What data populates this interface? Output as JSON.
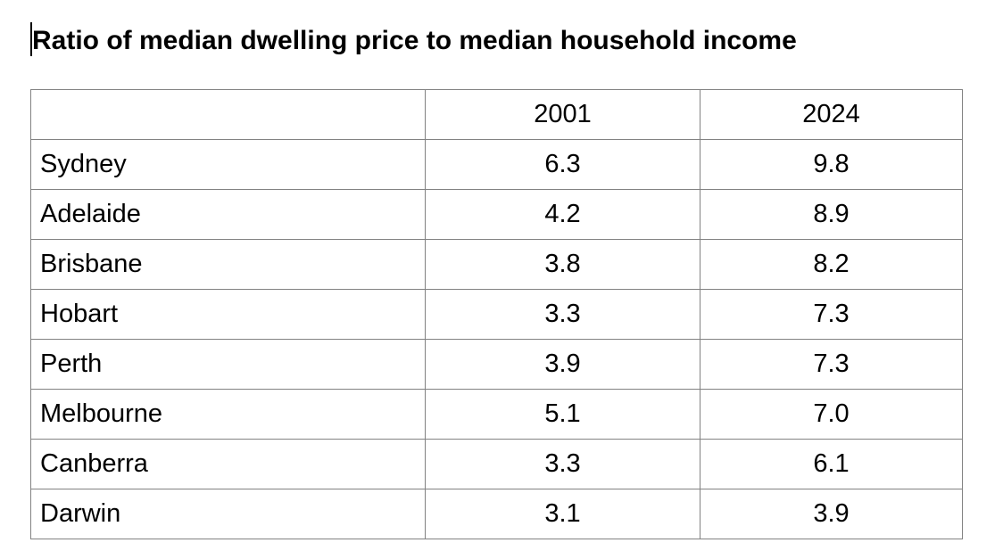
{
  "document": {
    "title": "Ratio of median dwelling price to median household income"
  },
  "table": {
    "headers": [
      "",
      "2001",
      "2024"
    ],
    "rows": [
      {
        "city": "Sydney",
        "values": [
          "6.3",
          "9.8"
        ]
      },
      {
        "city": "Adelaide",
        "values": [
          "4.2",
          "8.9"
        ]
      },
      {
        "city": "Brisbane",
        "values": [
          "3.8",
          "8.2"
        ]
      },
      {
        "city": "Hobart",
        "values": [
          "3.3",
          "7.3"
        ]
      },
      {
        "city": "Perth",
        "values": [
          "3.9",
          "7.3"
        ]
      },
      {
        "city": "Melbourne",
        "values": [
          "5.1",
          "7.0"
        ]
      },
      {
        "city": "Canberra",
        "values": [
          "3.3",
          "6.1"
        ]
      },
      {
        "city": "Darwin",
        "values": [
          "3.1",
          "3.9"
        ]
      }
    ]
  },
  "colors": {
    "table_border": "#828282",
    "text": "#000000",
    "background": "#ffffff"
  },
  "chart_data": {
    "type": "table",
    "title": "Ratio of median dwelling price to median household income",
    "categories": [
      "Sydney",
      "Adelaide",
      "Brisbane",
      "Hobart",
      "Perth",
      "Melbourne",
      "Canberra",
      "Darwin"
    ],
    "series": [
      {
        "name": "2001",
        "values": [
          6.3,
          4.2,
          3.8,
          3.3,
          3.9,
          5.1,
          3.3,
          3.1
        ]
      },
      {
        "name": "2024",
        "values": [
          9.8,
          8.9,
          8.2,
          7.3,
          7.3,
          7.0,
          6.1,
          3.9
        ]
      }
    ],
    "layout": {
      "grid": "on",
      "legend": "none"
    }
  }
}
